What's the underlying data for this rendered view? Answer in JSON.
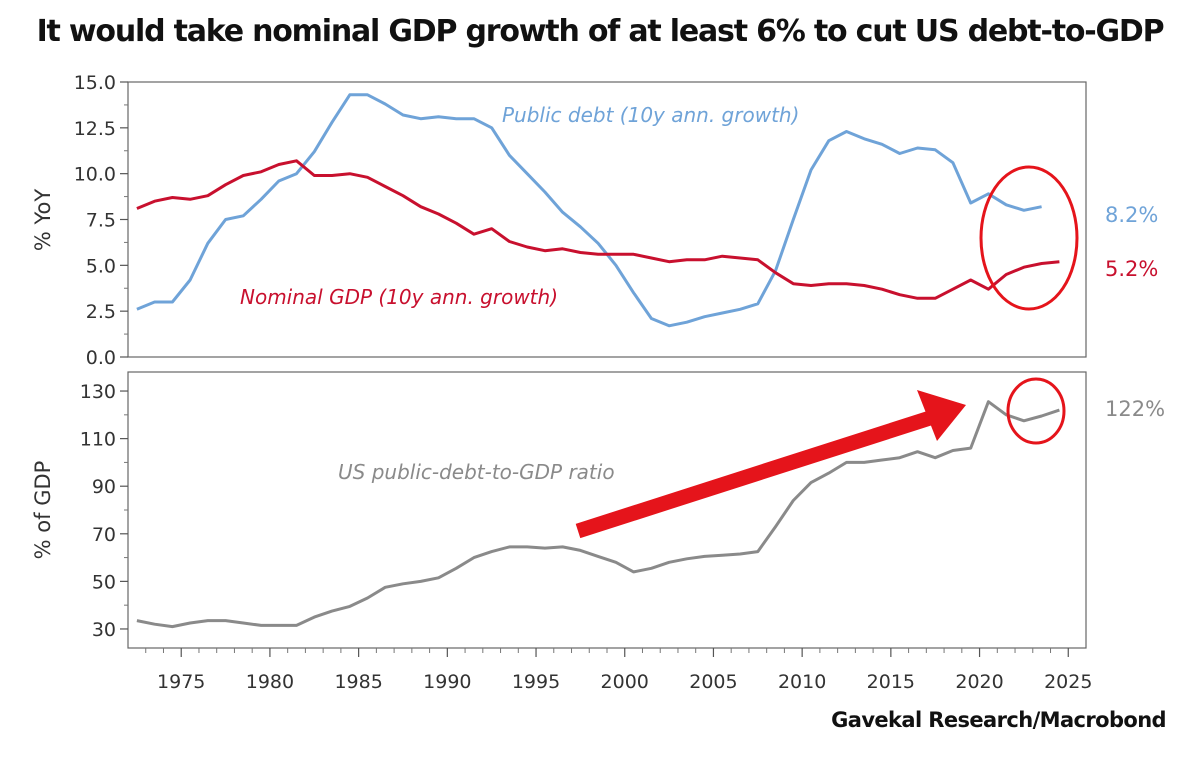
{
  "title": "It would take nominal GDP growth of at least 6% to cut US debt-to-GDP",
  "source": "Gavekal Research/Macrobond",
  "colors": {
    "public_debt": "#6fa3d8",
    "nominal_gdp": "#c8102e",
    "ratio": "#8a8a8a",
    "annotation": "#e5141b"
  },
  "chart_data": [
    {
      "type": "line",
      "ylabel": "% YoY",
      "ylim": [
        0,
        15
      ],
      "xlim": [
        1972,
        2026
      ],
      "yticks": [
        "0.0",
        "2.5",
        "5.0",
        "7.5",
        "10.0",
        "12.5",
        "15.0"
      ],
      "xticks": [
        "1975",
        "1980",
        "1985",
        "1990",
        "1995",
        "2000",
        "2005",
        "2010",
        "2015",
        "2020",
        "2025"
      ],
      "series": [
        {
          "name": "Public debt (10y ann. growth)",
          "end_label": "8.2%",
          "points": [
            [
              1972.5,
              2.6
            ],
            [
              1973.5,
              3.0
            ],
            [
              1974.5,
              3.0
            ],
            [
              1975.5,
              4.2
            ],
            [
              1976.5,
              6.2
            ],
            [
              1977.5,
              7.5
            ],
            [
              1978.5,
              7.7
            ],
            [
              1979.5,
              8.6
            ],
            [
              1980.5,
              9.6
            ],
            [
              1981.5,
              10.0
            ],
            [
              1982.5,
              11.2
            ],
            [
              1983.5,
              12.8
            ],
            [
              1984.5,
              14.3
            ],
            [
              1985.5,
              14.3
            ],
            [
              1986.5,
              13.8
            ],
            [
              1987.5,
              13.2
            ],
            [
              1988.5,
              13.0
            ],
            [
              1989.5,
              13.1
            ],
            [
              1990.5,
              13.0
            ],
            [
              1991.5,
              13.0
            ],
            [
              1992.5,
              12.5
            ],
            [
              1993.5,
              11.0
            ],
            [
              1994.5,
              10.0
            ],
            [
              1995.5,
              9.0
            ],
            [
              1996.5,
              7.9
            ],
            [
              1997.5,
              7.1
            ],
            [
              1998.5,
              6.2
            ],
            [
              1999.5,
              5.0
            ],
            [
              2000.5,
              3.5
            ],
            [
              2001.5,
              2.1
            ],
            [
              2002.5,
              1.7
            ],
            [
              2003.5,
              1.9
            ],
            [
              2004.5,
              2.2
            ],
            [
              2005.5,
              2.4
            ],
            [
              2006.5,
              2.6
            ],
            [
              2007.5,
              2.9
            ],
            [
              2008.5,
              4.7
            ],
            [
              2009.5,
              7.5
            ],
            [
              2010.5,
              10.2
            ],
            [
              2011.5,
              11.8
            ],
            [
              2012.5,
              12.3
            ],
            [
              2013.5,
              11.9
            ],
            [
              2014.5,
              11.6
            ],
            [
              2015.5,
              11.1
            ],
            [
              2016.5,
              11.4
            ],
            [
              2017.5,
              11.3
            ],
            [
              2018.5,
              10.6
            ],
            [
              2019.5,
              8.4
            ],
            [
              2020.5,
              8.9
            ],
            [
              2021.5,
              8.3
            ],
            [
              2022.5,
              8.0
            ],
            [
              2023.5,
              8.2
            ]
          ]
        },
        {
          "name": "Nominal GDP (10y ann. growth)",
          "end_label": "5.2%",
          "points": [
            [
              1972.5,
              8.1
            ],
            [
              1973.5,
              8.5
            ],
            [
              1974.5,
              8.7
            ],
            [
              1975.5,
              8.6
            ],
            [
              1976.5,
              8.8
            ],
            [
              1977.5,
              9.4
            ],
            [
              1978.5,
              9.9
            ],
            [
              1979.5,
              10.1
            ],
            [
              1980.5,
              10.5
            ],
            [
              1981.5,
              10.7
            ],
            [
              1982.5,
              9.9
            ],
            [
              1983.5,
              9.9
            ],
            [
              1984.5,
              10.0
            ],
            [
              1985.5,
              9.8
            ],
            [
              1986.5,
              9.3
            ],
            [
              1987.5,
              8.8
            ],
            [
              1988.5,
              8.2
            ],
            [
              1989.5,
              7.8
            ],
            [
              1990.5,
              7.3
            ],
            [
              1991.5,
              6.7
            ],
            [
              1992.5,
              7.0
            ],
            [
              1993.5,
              6.3
            ],
            [
              1994.5,
              6.0
            ],
            [
              1995.5,
              5.8
            ],
            [
              1996.5,
              5.9
            ],
            [
              1997.5,
              5.7
            ],
            [
              1998.5,
              5.6
            ],
            [
              1999.5,
              5.6
            ],
            [
              2000.5,
              5.6
            ],
            [
              2001.5,
              5.4
            ],
            [
              2002.5,
              5.2
            ],
            [
              2003.5,
              5.3
            ],
            [
              2004.5,
              5.3
            ],
            [
              2005.5,
              5.5
            ],
            [
              2006.5,
              5.4
            ],
            [
              2007.5,
              5.3
            ],
            [
              2008.5,
              4.6
            ],
            [
              2009.5,
              4.0
            ],
            [
              2010.5,
              3.9
            ],
            [
              2011.5,
              4.0
            ],
            [
              2012.5,
              4.0
            ],
            [
              2013.5,
              3.9
            ],
            [
              2014.5,
              3.7
            ],
            [
              2015.5,
              3.4
            ],
            [
              2016.5,
              3.2
            ],
            [
              2017.5,
              3.2
            ],
            [
              2018.5,
              3.7
            ],
            [
              2019.5,
              4.2
            ],
            [
              2020.5,
              3.7
            ],
            [
              2021.5,
              4.5
            ],
            [
              2022.5,
              4.9
            ],
            [
              2023.5,
              5.1
            ],
            [
              2024.5,
              5.2
            ]
          ]
        }
      ]
    },
    {
      "type": "line",
      "ylabel": "% of GDP",
      "ylim": [
        22,
        138
      ],
      "yticks": [
        "30",
        "50",
        "70",
        "90",
        "110",
        "130"
      ],
      "series": [
        {
          "name": "US public-debt-to-GDP ratio",
          "end_label": "122%",
          "points": [
            [
              1972.5,
              33.5
            ],
            [
              1973.5,
              32
            ],
            [
              1974.5,
              31
            ],
            [
              1975.5,
              32.5
            ],
            [
              1976.5,
              33.5
            ],
            [
              1977.5,
              33.5
            ],
            [
              1978.5,
              32.5
            ],
            [
              1979.5,
              31.5
            ],
            [
              1980.5,
              31.5
            ],
            [
              1981.5,
              31.5
            ],
            [
              1982.5,
              35
            ],
            [
              1983.5,
              37.5
            ],
            [
              1984.5,
              39.5
            ],
            [
              1985.5,
              43
            ],
            [
              1986.5,
              47.5
            ],
            [
              1987.5,
              49
            ],
            [
              1988.5,
              50
            ],
            [
              1989.5,
              51.5
            ],
            [
              1990.5,
              55.5
            ],
            [
              1991.5,
              60
            ],
            [
              1992.5,
              62.5
            ],
            [
              1993.5,
              64.5
            ],
            [
              1994.5,
              64.5
            ],
            [
              1995.5,
              64
            ],
            [
              1996.5,
              64.5
            ],
            [
              1997.5,
              63
            ],
            [
              1998.5,
              60.5
            ],
            [
              1999.5,
              58
            ],
            [
              2000.5,
              54
            ],
            [
              2001.5,
              55.5
            ],
            [
              2002.5,
              58
            ],
            [
              2003.5,
              59.5
            ],
            [
              2004.5,
              60.5
            ],
            [
              2005.5,
              61
            ],
            [
              2006.5,
              61.5
            ],
            [
              2007.5,
              62.5
            ],
            [
              2008.5,
              73
            ],
            [
              2009.5,
              84
            ],
            [
              2010.5,
              91.5
            ],
            [
              2011.5,
              95.5
            ],
            [
              2012.5,
              100
            ],
            [
              2013.5,
              100
            ],
            [
              2014.5,
              101
            ],
            [
              2015.5,
              102
            ],
            [
              2016.5,
              104.5
            ],
            [
              2017.5,
              102
            ],
            [
              2018.5,
              105
            ],
            [
              2019.5,
              106
            ],
            [
              2020.5,
              125.5
            ],
            [
              2021.5,
              120
            ],
            [
              2022.5,
              117.5
            ],
            [
              2023.5,
              119.5
            ],
            [
              2024.5,
              122
            ]
          ]
        }
      ]
    }
  ]
}
